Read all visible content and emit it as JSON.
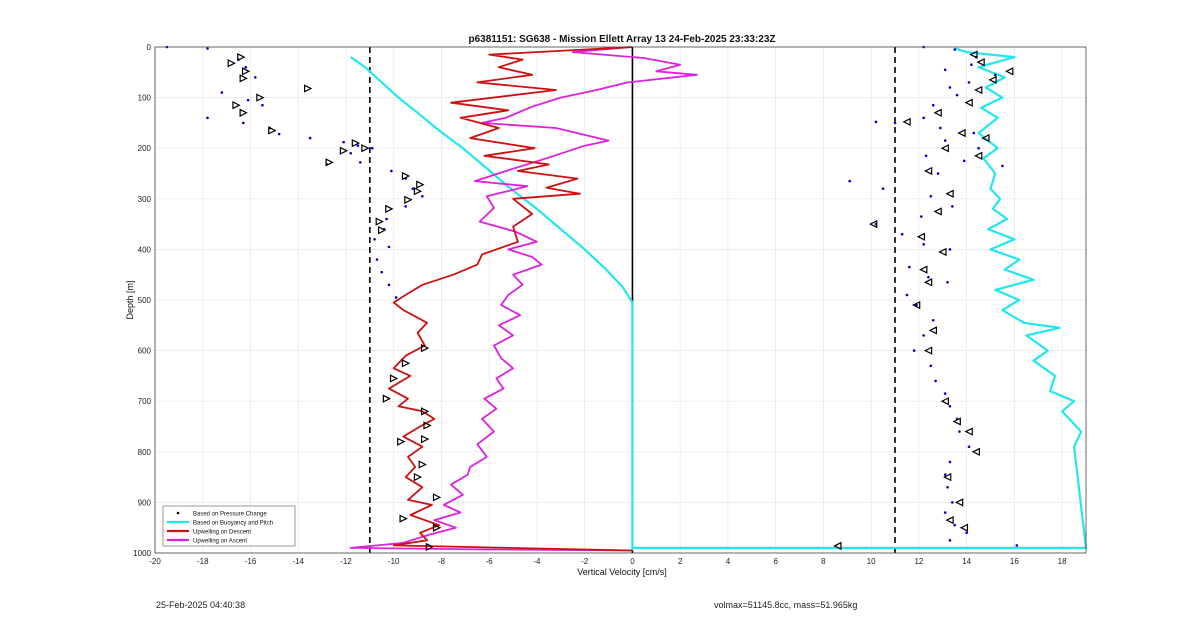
{
  "footer": {
    "timestamp": "25-Feb-2025 04:40:38",
    "mass_info": "volmax=51145.8cc, mass=51.965kg"
  },
  "chart_data": {
    "type": "line",
    "title": "p6381151: SG638 - Mission Ellett Array 13 24-Feb-2025 23:33:23Z",
    "xlabel": "Vertical Velocity [cm/s]",
    "ylabel": "Depth [m]",
    "xlim": [
      -20,
      19
    ],
    "ylim": [
      1000,
      0
    ],
    "y_reversed": true,
    "grid": true,
    "x_ticks": [
      -20,
      -18,
      -16,
      -14,
      -12,
      -10,
      -8,
      -6,
      -4,
      -2,
      0,
      2,
      4,
      6,
      8,
      10,
      12,
      14,
      16,
      18
    ],
    "y_ticks": [
      0,
      100,
      200,
      300,
      400,
      500,
      600,
      700,
      800,
      900,
      1000
    ],
    "legend_position": "bottom-left",
    "reference_lines": [
      {
        "x": -11,
        "style": "dashed",
        "color": "#000000"
      },
      {
        "x": 0,
        "style": "solid",
        "color": "#000000"
      },
      {
        "x": 11,
        "style": "dashed",
        "color": "#000000"
      }
    ],
    "series": [
      {
        "name": "Based on Pressure Change",
        "color": "#0000cc",
        "style": "points",
        "points_descent": [
          [
            -19.5,
            0
          ],
          [
            -17.8,
            3
          ],
          [
            -16.5,
            25
          ],
          [
            -16.2,
            40
          ],
          [
            -15.8,
            60
          ],
          [
            -17.2,
            90
          ],
          [
            -16.1,
            105
          ],
          [
            -15.5,
            115
          ],
          [
            -17.8,
            140
          ],
          [
            -16.3,
            150
          ],
          [
            -15.2,
            160
          ],
          [
            -14.8,
            172
          ],
          [
            -13.5,
            180
          ],
          [
            -12.1,
            188
          ],
          [
            -11.5,
            195
          ],
          [
            -10.9,
            200
          ],
          [
            -11.8,
            210
          ],
          [
            -12.8,
            232
          ],
          [
            -11.4,
            228
          ],
          [
            -10.1,
            245
          ],
          [
            -9.5,
            260
          ],
          [
            -9.2,
            280
          ],
          [
            -8.8,
            295
          ],
          [
            -9.5,
            315
          ],
          [
            -10.3,
            340
          ],
          [
            -10.4,
            360
          ],
          [
            -10.8,
            380
          ],
          [
            -10.2,
            395
          ],
          [
            -10.7,
            420
          ],
          [
            -10.5,
            445
          ],
          [
            -10.2,
            470
          ],
          [
            -9.9,
            495
          ]
        ],
        "points_ascent": [
          [
            12.2,
            0
          ],
          [
            13.5,
            5
          ],
          [
            14.4,
            20
          ],
          [
            14.2,
            35
          ],
          [
            13.1,
            45
          ],
          [
            15.2,
            55
          ],
          [
            14.1,
            70
          ],
          [
            13.3,
            80
          ],
          [
            13.6,
            95
          ],
          [
            12.6,
            115
          ],
          [
            12.2,
            140
          ],
          [
            11.0,
            150
          ],
          [
            10.2,
            148
          ],
          [
            12.9,
            160
          ],
          [
            14.3,
            170
          ],
          [
            13.1,
            185
          ],
          [
            14.5,
            200
          ],
          [
            12.3,
            215
          ],
          [
            13.9,
            225
          ],
          [
            15.5,
            235
          ],
          [
            12.8,
            250
          ],
          [
            9.1,
            265
          ],
          [
            10.5,
            280
          ],
          [
            12.5,
            295
          ],
          [
            13.4,
            315
          ],
          [
            12.1,
            335
          ],
          [
            10.2,
            350
          ],
          [
            11.3,
            370
          ],
          [
            12.2,
            390
          ],
          [
            13.3,
            400
          ],
          [
            11.6,
            435
          ],
          [
            12.4,
            455
          ],
          [
            13.2,
            465
          ],
          [
            11.5,
            490
          ],
          [
            11.9,
            510
          ],
          [
            12.6,
            540
          ],
          [
            12.2,
            570
          ],
          [
            11.8,
            600
          ],
          [
            12.5,
            630
          ],
          [
            12.7,
            660
          ],
          [
            13.1,
            685
          ],
          [
            13.3,
            710
          ],
          [
            13.6,
            735
          ],
          [
            13.7,
            760
          ],
          [
            14.1,
            790
          ],
          [
            13.3,
            820
          ],
          [
            13.1,
            845
          ],
          [
            13.2,
            870
          ],
          [
            13.4,
            900
          ],
          [
            13.1,
            920
          ],
          [
            13.5,
            945
          ],
          [
            14.0,
            960
          ],
          [
            13.3,
            975
          ],
          [
            16.1,
            985
          ]
        ]
      },
      {
        "name": "Based on Buoyancy and Pitch",
        "color": "#22e6f0",
        "style": "line"
      },
      {
        "name": "Upwelling on Descent",
        "color": "#cc1111",
        "style": "line"
      },
      {
        "name": "Upwelling on Ascent",
        "color": "#dd22dd",
        "style": "line"
      }
    ],
    "triangle_markers_descent": [
      [
        -16.4,
        20
      ],
      [
        -16.8,
        32
      ],
      [
        -16.2,
        48
      ],
      [
        -16.3,
        62
      ],
      [
        -13.6,
        82
      ],
      [
        -15.6,
        100
      ],
      [
        -16.6,
        115
      ],
      [
        -16.3,
        130
      ],
      [
        -15.1,
        165
      ],
      [
        -11.6,
        190
      ],
      [
        -11.2,
        200
      ],
      [
        -12.1,
        205
      ],
      [
        -12.7,
        228
      ],
      [
        -9.5,
        255
      ],
      [
        -8.9,
        272
      ],
      [
        -9.0,
        285
      ],
      [
        -9.4,
        302
      ],
      [
        -10.2,
        320
      ],
      [
        -10.6,
        345
      ],
      [
        -10.5,
        362
      ],
      [
        -8.7,
        595
      ],
      [
        -9.5,
        625
      ],
      [
        -10.0,
        655
      ],
      [
        -10.3,
        695
      ],
      [
        -8.7,
        720
      ],
      [
        -8.6,
        748
      ],
      [
        -8.7,
        775
      ],
      [
        -9.7,
        780
      ],
      [
        -8.8,
        825
      ],
      [
        -9.0,
        850
      ],
      [
        -8.2,
        890
      ],
      [
        -9.6,
        932
      ],
      [
        -8.2,
        950
      ],
      [
        -8.5,
        988
      ]
    ],
    "triangle_markers_ascent": [
      [
        14.3,
        15
      ],
      [
        14.6,
        30
      ],
      [
        15.8,
        48
      ],
      [
        15.1,
        65
      ],
      [
        14.5,
        85
      ],
      [
        14.1,
        110
      ],
      [
        12.8,
        130
      ],
      [
        11.5,
        148
      ],
      [
        13.8,
        170
      ],
      [
        14.8,
        180
      ],
      [
        13.1,
        200
      ],
      [
        14.5,
        215
      ],
      [
        12.4,
        245
      ],
      [
        13.3,
        290
      ],
      [
        12.8,
        325
      ],
      [
        10.1,
        350
      ],
      [
        12.1,
        375
      ],
      [
        13.0,
        405
      ],
      [
        12.2,
        440
      ],
      [
        12.4,
        465
      ],
      [
        11.9,
        510
      ],
      [
        12.6,
        560
      ],
      [
        12.4,
        600
      ],
      [
        13.1,
        700
      ],
      [
        13.6,
        740
      ],
      [
        14.1,
        760
      ],
      [
        14.4,
        800
      ],
      [
        13.2,
        850
      ],
      [
        13.7,
        900
      ],
      [
        13.3,
        935
      ],
      [
        13.9,
        950
      ],
      [
        8.6,
        986
      ]
    ],
    "descent_trace": [
      [
        0,
        0
      ],
      [
        -6,
        15
      ],
      [
        -4.6,
        25
      ],
      [
        -5.6,
        40
      ],
      [
        -4.2,
        55
      ],
      [
        -6.5,
        70
      ],
      [
        -3.2,
        85
      ],
      [
        -7.6,
        110
      ],
      [
        -5.2,
        125
      ],
      [
        -7.2,
        140
      ],
      [
        -5.6,
        160
      ],
      [
        -6.8,
        180
      ],
      [
        -4.1,
        200
      ],
      [
        -6.2,
        215
      ],
      [
        -3.5,
        232
      ],
      [
        -4.8,
        245
      ],
      [
        -2.3,
        260
      ],
      [
        -3.6,
        278
      ],
      [
        -2.2,
        290
      ],
      [
        -5.0,
        300
      ],
      [
        -4.2,
        330
      ],
      [
        -5.0,
        355
      ],
      [
        -4.8,
        385
      ],
      [
        -6.3,
        410
      ],
      [
        -6.5,
        430
      ],
      [
        -7.5,
        450
      ],
      [
        -8.8,
        470
      ],
      [
        -9.5,
        490
      ],
      [
        -10.0,
        505
      ],
      [
        -9.6,
        520
      ],
      [
        -8.6,
        545
      ],
      [
        -9.0,
        565
      ],
      [
        -8.7,
        590
      ],
      [
        -9.5,
        610
      ],
      [
        -10.0,
        635
      ],
      [
        -9.3,
        650
      ],
      [
        -10.2,
        675
      ],
      [
        -9.4,
        695
      ],
      [
        -9.8,
        710
      ],
      [
        -8.8,
        720
      ],
      [
        -8.3,
        735
      ],
      [
        -8.9,
        750
      ],
      [
        -9.6,
        770
      ],
      [
        -8.8,
        790
      ],
      [
        -9.4,
        810
      ],
      [
        -9.1,
        830
      ],
      [
        -9.5,
        850
      ],
      [
        -8.8,
        870
      ],
      [
        -9.4,
        895
      ],
      [
        -8.4,
        905
      ],
      [
        -9.3,
        925
      ],
      [
        -8.1,
        945
      ],
      [
        -8.9,
        960
      ],
      [
        -8.6,
        975
      ],
      [
        -10.0,
        985
      ],
      [
        0,
        995
      ]
    ],
    "ascent_trace": [
      [
        0,
        0
      ],
      [
        -2.5,
        10
      ],
      [
        0.5,
        22
      ],
      [
        2.0,
        35
      ],
      [
        1.0,
        48
      ],
      [
        2.7,
        55
      ],
      [
        -0.2,
        70
      ],
      [
        -1.5,
        85
      ],
      [
        -3.0,
        100
      ],
      [
        -4.2,
        118
      ],
      [
        -5.3,
        140
      ],
      [
        -6.3,
        150
      ],
      [
        -3.2,
        160
      ],
      [
        -1.0,
        185
      ],
      [
        -2.0,
        195
      ],
      [
        -3.6,
        220
      ],
      [
        -5.3,
        245
      ],
      [
        -6.6,
        265
      ],
      [
        -4.4,
        275
      ],
      [
        -6.1,
        295
      ],
      [
        -5.8,
        318
      ],
      [
        -6.4,
        345
      ],
      [
        -4.9,
        365
      ],
      [
        -4.0,
        385
      ],
      [
        -5.2,
        400
      ],
      [
        -4.2,
        415
      ],
      [
        -3.8,
        430
      ],
      [
        -5.0,
        450
      ],
      [
        -4.6,
        470
      ],
      [
        -5.2,
        490
      ],
      [
        -5.5,
        510
      ],
      [
        -4.7,
        530
      ],
      [
        -5.6,
        550
      ],
      [
        -5.0,
        570
      ],
      [
        -5.8,
        590
      ],
      [
        -5.5,
        615
      ],
      [
        -5.0,
        635
      ],
      [
        -5.7,
        655
      ],
      [
        -5.4,
        675
      ],
      [
        -6.2,
        695
      ],
      [
        -5.7,
        715
      ],
      [
        -6.3,
        735
      ],
      [
        -5.8,
        760
      ],
      [
        -6.5,
        785
      ],
      [
        -6.1,
        810
      ],
      [
        -6.8,
        830
      ],
      [
        -6.9,
        845
      ],
      [
        -7.6,
        865
      ],
      [
        -7.1,
        885
      ],
      [
        -7.9,
        905
      ],
      [
        -7.2,
        920
      ],
      [
        -8.3,
        935
      ],
      [
        -7.4,
        950
      ],
      [
        -8.6,
        965
      ],
      [
        -9.6,
        980
      ],
      [
        -11.8,
        990
      ],
      [
        -6.0,
        993
      ],
      [
        0,
        995
      ]
    ],
    "buoyancy_descent": [
      [
        -11.8,
        20
      ],
      [
        -11.2,
        40
      ],
      [
        -10.5,
        70
      ],
      [
        -9.8,
        100
      ],
      [
        -9.0,
        130
      ],
      [
        -8.1,
        165
      ],
      [
        -7.1,
        200
      ],
      [
        -6.1,
        240
      ],
      [
        -5.1,
        280
      ],
      [
        -4.0,
        320
      ],
      [
        -3.0,
        360
      ],
      [
        -2.0,
        400
      ],
      [
        -1.1,
        440
      ],
      [
        -0.4,
        475
      ],
      [
        0,
        505
      ],
      [
        0,
        995
      ]
    ],
    "buoyancy_ascent": [
      [
        0,
        990
      ],
      [
        8,
        990
      ],
      [
        19,
        990
      ],
      [
        18.5,
        790
      ],
      [
        18.8,
        760
      ],
      [
        18.0,
        720
      ],
      [
        18.5,
        700
      ],
      [
        17.5,
        680
      ],
      [
        17.7,
        650
      ],
      [
        16.8,
        620
      ],
      [
        17.4,
        600
      ],
      [
        16.5,
        570
      ],
      [
        17.9,
        555
      ],
      [
        16.4,
        545
      ],
      [
        15.5,
        520
      ],
      [
        16.2,
        500
      ],
      [
        15.2,
        480
      ],
      [
        16.8,
        460
      ],
      [
        15.6,
        440
      ],
      [
        16.2,
        420
      ],
      [
        15.0,
        400
      ],
      [
        16.0,
        380
      ],
      [
        14.9,
        360
      ],
      [
        15.7,
        340
      ],
      [
        15.1,
        320
      ],
      [
        15.4,
        300
      ],
      [
        15.0,
        280
      ],
      [
        15.2,
        250
      ],
      [
        14.7,
        220
      ],
      [
        15.3,
        200
      ],
      [
        14.5,
        170
      ],
      [
        15.3,
        140
      ],
      [
        14.6,
        120
      ],
      [
        15.5,
        100
      ],
      [
        14.8,
        80
      ],
      [
        15.6,
        60
      ],
      [
        14.5,
        40
      ],
      [
        16.0,
        20
      ],
      [
        14.0,
        10
      ],
      [
        13.5,
        3
      ]
    ]
  }
}
